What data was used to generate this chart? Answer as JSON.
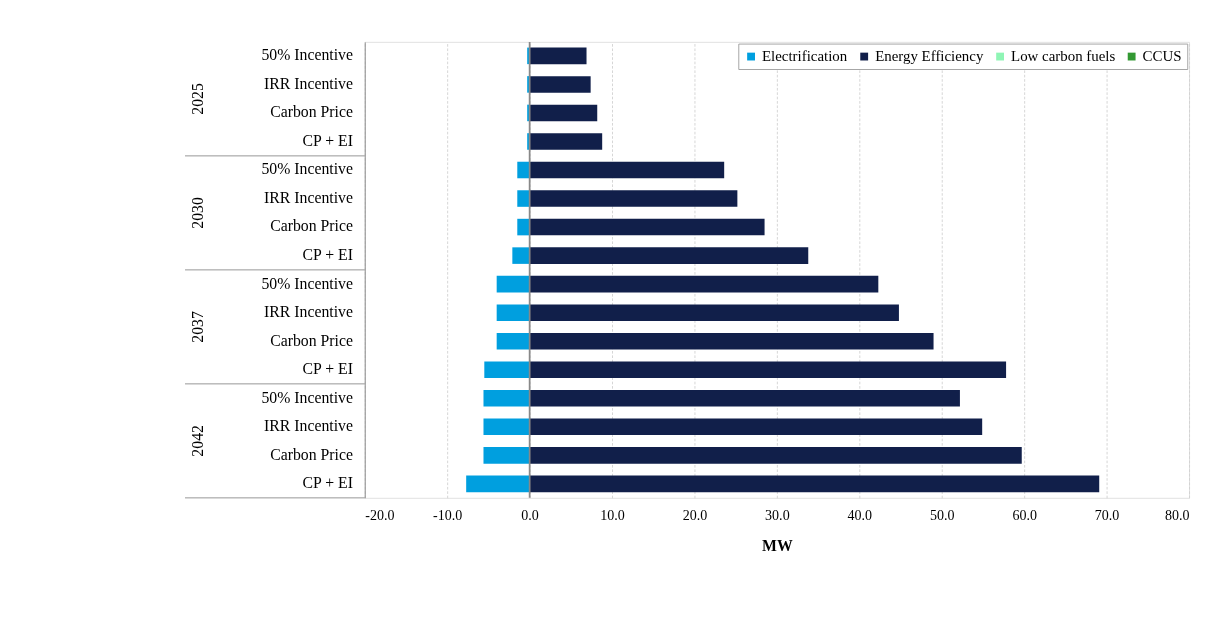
{
  "chart_data": {
    "type": "bar",
    "orientation": "horizontal",
    "stacked": true,
    "xlabel": "MW",
    "categories": [
      "50% Incentive",
      "IRR Incentive",
      "Carbon Price",
      "CP + EI",
      "50% Incentive",
      "IRR Incentive",
      "Carbon Price",
      "CP + EI",
      "50% Incentive",
      "IRR Incentive",
      "Carbon Price",
      "CP + EI",
      "50% Incentive",
      "IRR Incentive",
      "Carbon Price",
      "CP + EI"
    ],
    "series": [
      {
        "name": "Electrification",
        "color": "#009fdf",
        "values": [
          -0.3,
          -0.3,
          -0.3,
          -0.3,
          -1.5,
          -1.5,
          -1.5,
          -2.1,
          -4.0,
          -4.0,
          -4.0,
          -5.5,
          -5.6,
          -5.6,
          -5.6,
          -7.7
        ]
      },
      {
        "name": "Energy Efficiency",
        "color": "#111f4a",
        "values": [
          6.9,
          7.4,
          8.2,
          8.8,
          23.6,
          25.2,
          28.5,
          33.8,
          42.3,
          44.8,
          49.0,
          57.8,
          52.2,
          54.9,
          59.7,
          69.1
        ]
      },
      {
        "name": "Low carbon fuels",
        "color": "#8ff5b5",
        "values": [
          0,
          0,
          0,
          0,
          0,
          0,
          0,
          0,
          0,
          0,
          0,
          0,
          0,
          0,
          0,
          0
        ]
      },
      {
        "name": "CCUS",
        "color": "#339933",
        "values": [
          0,
          0,
          0,
          0,
          0,
          0,
          0,
          0,
          0,
          0,
          0,
          0,
          0,
          0,
          0,
          0
        ]
      }
    ],
    "xlim": [
      -20,
      80
    ],
    "xticks": [
      {
        "value": -20,
        "label": "-20.0"
      },
      {
        "value": -10,
        "label": "-10.0"
      },
      {
        "value": 0,
        "label": "0.0"
      },
      {
        "value": 10,
        "label": "10.0"
      },
      {
        "value": 20,
        "label": "20.0"
      },
      {
        "value": 30,
        "label": "30.0"
      },
      {
        "value": 40,
        "label": "40.0"
      },
      {
        "value": 50,
        "label": "50.0"
      },
      {
        "value": 60,
        "label": "60.0"
      },
      {
        "value": 70,
        "label": "70.0"
      },
      {
        "value": 80,
        "label": "80.0"
      }
    ],
    "annotations": [
      "2025",
      "2030",
      "2037",
      "2042"
    ],
    "grid": "x",
    "legend": "top right"
  }
}
